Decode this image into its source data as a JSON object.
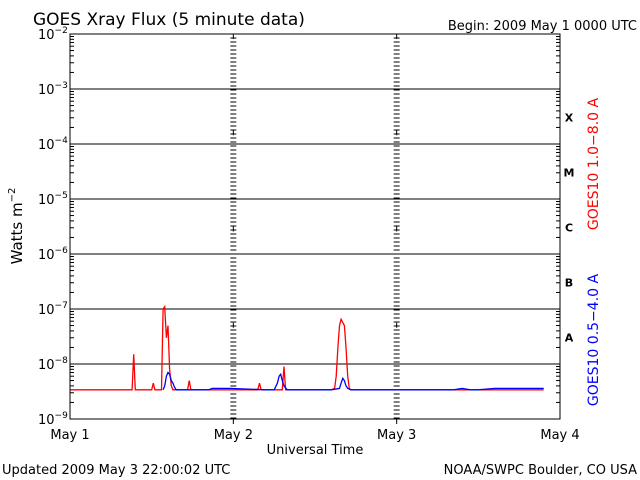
{
  "chart_data": {
    "type": "line",
    "title": "GOES Xray Flux (5 minute data)",
    "begin_text": "Begin:  2009 May 1 0000 UTC",
    "updated_text": "Updated 2009 May  3 22:00:02 UTC",
    "source_text": "NOAA/SWPC Boulder, CO USA",
    "xlabel": "Universal Time",
    "ylabel_base": "Watts m",
    "ylabel_exp": "−2",
    "y_scale": "log",
    "ylim": [
      1e-09,
      0.01
    ],
    "grid": "horizontal lines at each decade",
    "x_ticks": [
      {
        "label": "May 1",
        "day": 0
      },
      {
        "label": "May 2",
        "day": 1
      },
      {
        "label": "May 3",
        "day": 2
      },
      {
        "label": "May 4",
        "day": 3
      }
    ],
    "y_ticks": [
      {
        "base": "10",
        "exp": "−2",
        "value": 0.01
      },
      {
        "base": "10",
        "exp": "−3",
        "value": 0.001
      },
      {
        "base": "10",
        "exp": "−4",
        "value": 0.0001
      },
      {
        "base": "10",
        "exp": "−5",
        "value": 1e-05
      },
      {
        "base": "10",
        "exp": "−6",
        "value": 1e-06
      },
      {
        "base": "10",
        "exp": "−7",
        "value": 1e-07
      },
      {
        "base": "10",
        "exp": "−8",
        "value": 1e-08
      },
      {
        "base": "10",
        "exp": "−9",
        "value": 1e-09
      }
    ],
    "flare_classes": [
      {
        "label": "X",
        "lower": 0.0001,
        "upper": 0.001
      },
      {
        "label": "M",
        "lower": 1e-05,
        "upper": 0.0001
      },
      {
        "label": "C",
        "lower": 1e-06,
        "upper": 1e-05
      },
      {
        "label": "B",
        "lower": 1e-07,
        "upper": 1e-06
      },
      {
        "label": "A",
        "lower": 1e-08,
        "upper": 1e-07
      }
    ],
    "series": [
      {
        "name": "GOES10 1.0−8.0 A",
        "color": "#ff0000",
        "x": [
          0.0,
          0.38,
          0.39,
          0.4,
          0.41,
          0.42,
          0.5,
          0.51,
          0.52,
          0.55,
          0.56,
          0.57,
          0.58,
          0.59,
          0.6,
          0.61,
          0.62,
          0.63,
          0.65,
          0.66,
          0.7,
          0.72,
          0.73,
          0.74,
          0.75,
          0.78,
          1.0,
          1.15,
          1.16,
          1.17,
          1.2,
          1.3,
          1.31,
          1.32,
          1.33,
          1.34,
          1.35,
          1.36,
          1.4,
          1.6,
          1.62,
          1.63,
          1.64,
          1.65,
          1.66,
          1.68,
          1.69,
          1.7,
          1.71,
          1.72,
          1.73,
          1.74,
          1.75,
          1.76,
          1.78,
          1.8,
          1.82,
          2.0,
          2.5,
          2.9
        ],
        "y": [
          3.4e-09,
          3.4e-09,
          1.5e-08,
          3.4e-09,
          3.4e-09,
          3.4e-09,
          3.4e-09,
          4.5e-09,
          3.4e-09,
          3.4e-09,
          3.4e-09,
          1e-07,
          1.1e-07,
          3e-08,
          5e-08,
          8e-09,
          4e-09,
          3.4e-09,
          3.4e-09,
          3.4e-09,
          3.4e-09,
          3.4e-09,
          5e-09,
          3.4e-09,
          3.4e-09,
          3.4e-09,
          3.4e-09,
          3.4e-09,
          4.5e-09,
          3.4e-09,
          3.4e-09,
          3.4e-09,
          9e-09,
          3.4e-09,
          3.4e-09,
          3.4e-09,
          3.4e-09,
          3.4e-09,
          3.4e-09,
          3.4e-09,
          3.6e-09,
          6e-09,
          2e-08,
          5e-08,
          6.5e-08,
          5e-08,
          2e-08,
          6e-09,
          3.6e-09,
          3.4e-09,
          3.4e-09,
          3.4e-09,
          3.4e-09,
          3.4e-09,
          3.4e-09,
          3.4e-09,
          3.4e-09,
          3.4e-09,
          3.4e-09,
          3.4e-09
        ]
      },
      {
        "name": "GOES10 0.5−4.0 A",
        "color": "#0000ff",
        "x": [
          0.57,
          0.58,
          0.59,
          0.6,
          0.61,
          0.62,
          0.63,
          0.64,
          0.65,
          0.85,
          0.87,
          0.98,
          1.2,
          1.25,
          1.27,
          1.28,
          1.29,
          1.3,
          1.31,
          1.33,
          1.6,
          1.65,
          1.66,
          1.67,
          1.68,
          1.69,
          1.7,
          1.72,
          1.8,
          1.85,
          2.0,
          2.35,
          2.4,
          2.45,
          2.5,
          2.6,
          2.65,
          2.7,
          2.9
        ],
        "y": [
          3.4e-09,
          4e-09,
          6e-09,
          7e-09,
          6.5e-09,
          5e-09,
          4.5e-09,
          3.8e-09,
          3.4e-09,
          3.4e-09,
          3.6e-09,
          3.6e-09,
          3.4e-09,
          3.4e-09,
          4.5e-09,
          6e-09,
          6.5e-09,
          5e-09,
          4e-09,
          3.4e-09,
          3.4e-09,
          3.6e-09,
          4.5e-09,
          5.5e-09,
          5e-09,
          4e-09,
          3.6e-09,
          3.4e-09,
          3.4e-09,
          3.4e-09,
          3.4e-09,
          3.4e-09,
          3.6e-09,
          3.4e-09,
          3.4e-09,
          3.6e-09,
          3.6e-09,
          3.6e-09,
          3.6e-09
        ]
      }
    ]
  }
}
